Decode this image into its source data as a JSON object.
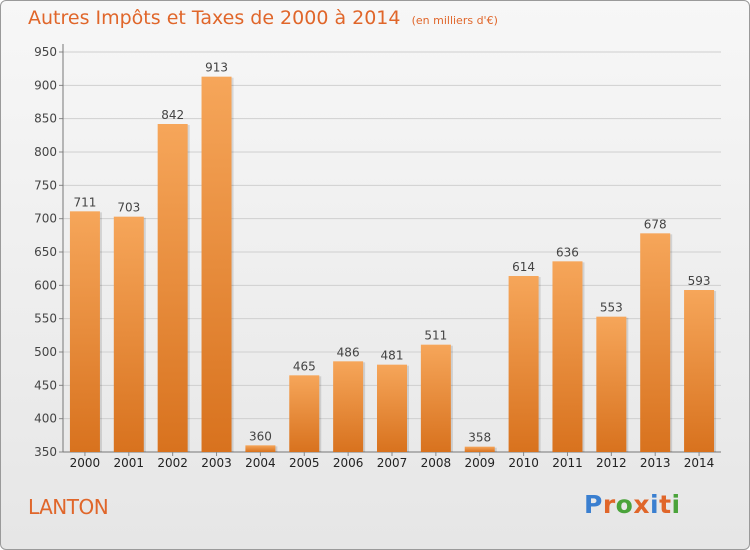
{
  "header": {
    "title": "Autres Impôts et Taxes de 2000 à 2014",
    "unit": "(en milliers d'€)"
  },
  "commune": "LANTON",
  "logo": {
    "text": "Proxiti",
    "colors": [
      "#3a7fd0",
      "#e0662a",
      "#4aa33a",
      "#e0662a",
      "#3a7fd0",
      "#e0662a",
      "#4aa33a"
    ]
  },
  "colors": {
    "bar_top": "#f6a65a",
    "bar_bottom": "#d8721e",
    "text_accent": "#e0662a"
  },
  "chart_data": {
    "type": "bar",
    "title": "Autres Impôts et Taxes de 2000 à 2014",
    "xlabel": "",
    "ylabel": "",
    "categories": [
      "2000",
      "2001",
      "2002",
      "2003",
      "2004",
      "2005",
      "2006",
      "2007",
      "2008",
      "2009",
      "2010",
      "2011",
      "2012",
      "2013",
      "2014"
    ],
    "values": [
      711,
      703,
      842,
      913,
      360,
      465,
      486,
      481,
      511,
      358,
      614,
      636,
      553,
      678,
      593
    ],
    "ylim": [
      350,
      950
    ],
    "yticks": [
      350,
      400,
      450,
      500,
      550,
      600,
      650,
      700,
      750,
      800,
      850,
      900,
      950
    ],
    "grid": true,
    "legend": "none"
  }
}
